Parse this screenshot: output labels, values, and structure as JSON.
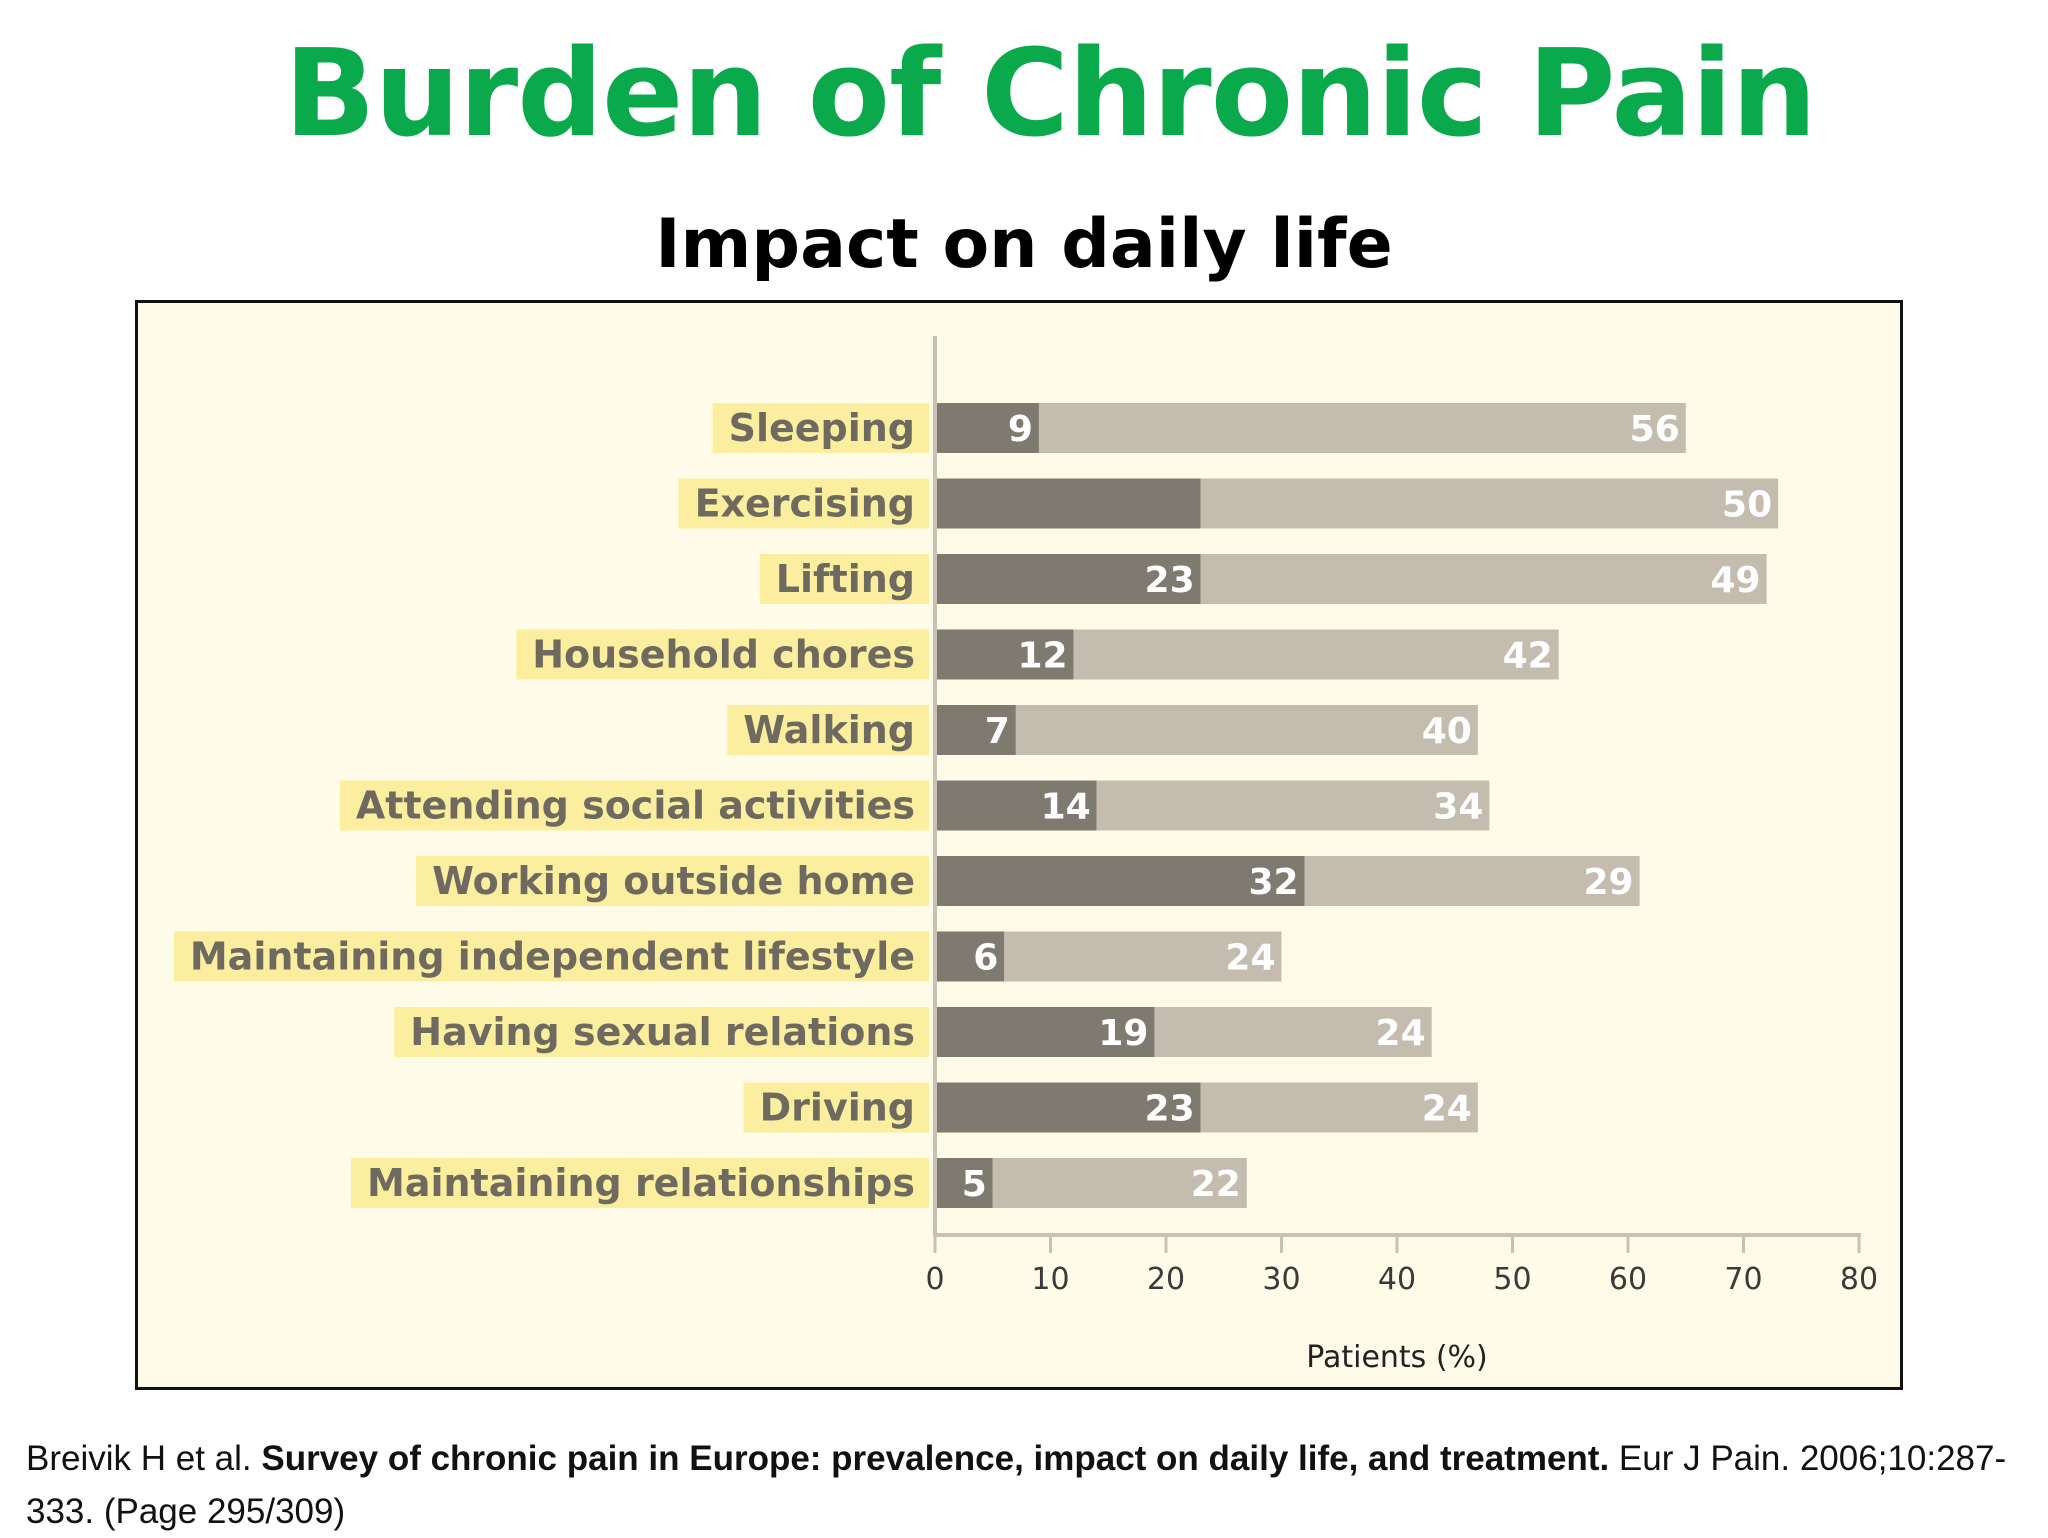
{
  "slide": {
    "title": "Burden of Chronic Pain",
    "subtitle": "Impact on daily life",
    "title_color": "#0aaa4c"
  },
  "citation": {
    "authors": "Breivik  H et al.",
    "article_title": "Survey of chronic pain in Europe: prevalence, impact on daily life, and treatment.",
    "journal": "Eur J Pain. 2006;10:287-333. (Page 295/309)"
  },
  "chart_data": {
    "type": "bar",
    "orientation": "horizontal",
    "stacked": true,
    "title": "",
    "xlabel": "Patients (%)",
    "ylabel": "",
    "xlim": [
      0,
      80
    ],
    "x_ticks": [
      "0",
      "10",
      "20",
      "30",
      "40",
      "50",
      "60",
      "70",
      "80"
    ],
    "grid": false,
    "categories": [
      "Sleeping",
      "Exercising",
      "Lifting",
      "Household chores",
      "Walking",
      "Attending social activities",
      "Working outside home",
      "Maintaining independent lifestyle",
      "Having sexual relations",
      "Driving",
      "Maintaining relationships"
    ],
    "series": [
      {
        "values": [
          9,
          23,
          23,
          12,
          7,
          14,
          32,
          6,
          19,
          23,
          5
        ],
        "labels": [
          "9",
          "",
          "23",
          "12",
          "7",
          "14",
          "32",
          "6",
          "19",
          "23",
          "5"
        ],
        "color": "#7f7a6f"
      },
      {
        "values": [
          56,
          50,
          49,
          42,
          40,
          34,
          29,
          24,
          24,
          24,
          22
        ],
        "labels": [
          "56",
          "50",
          "49",
          "42",
          "40",
          "34",
          "29",
          "24",
          "24",
          "24",
          "22"
        ],
        "color": "#c4bcae"
      }
    ],
    "colors": {
      "plot_background": "#fffbe9",
      "label_background": "#fbee9f",
      "category_text": "#6e6a5f",
      "axis": "#c9c1b3",
      "tick_text": "#3a3a3a",
      "bar_label_text": "#ffffff"
    }
  }
}
